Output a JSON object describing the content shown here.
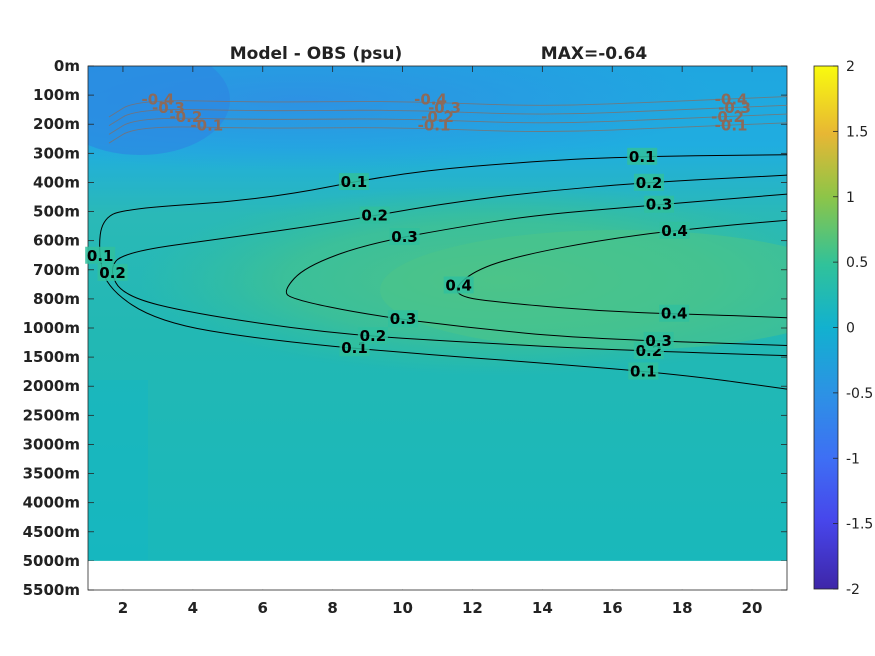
{
  "chart_data": {
    "type": "heatmap",
    "title": "Model - OBS (psu)",
    "subtitle": "MAX=-0.64",
    "xlim": [
      1,
      21
    ],
    "x_ticks": [
      "2",
      "4",
      "6",
      "8",
      "10",
      "12",
      "14",
      "16",
      "18",
      "20"
    ],
    "x_tick_values": [
      2,
      4,
      6,
      8,
      10,
      12,
      14,
      16,
      18,
      20
    ],
    "y_ticks": [
      "0m",
      "100m",
      "200m",
      "300m",
      "400m",
      "500m",
      "600m",
      "700m",
      "800m",
      "1000m",
      "1500m",
      "2000m",
      "2500m",
      "3000m",
      "3500m",
      "4000m",
      "4500m",
      "5000m",
      "5500m"
    ],
    "y_index_range": [
      0,
      18
    ],
    "data_depth_limit_index": 17,
    "colorbar": {
      "range": [
        -2,
        2
      ],
      "ticks": [
        "2",
        "1.5",
        "1",
        "0.5",
        "0",
        "-0.5",
        "-1",
        "-1.5",
        "-2"
      ],
      "tick_values": [
        2,
        1.5,
        1,
        0.5,
        0,
        -0.5,
        -1,
        -1.5,
        -2
      ],
      "colormap": "parula"
    },
    "contour_colors": {
      "positive": "#000000",
      "negative": "#8c6a5a"
    },
    "positive_contours": [
      {
        "level": 0.1,
        "labels": [
          "0.1",
          "0.1",
          "0.1",
          "0.1",
          "0.1"
        ],
        "path": [
          [
            21,
            3.05
          ],
          [
            17,
            3.1
          ],
          [
            14,
            3.25
          ],
          [
            10,
            3.65
          ],
          [
            6,
            4.6
          ],
          [
            2,
            4.9
          ],
          [
            1.4,
            5.3
          ],
          [
            1.3,
            6.3
          ],
          [
            1.5,
            7.6
          ],
          [
            3,
            8.8
          ],
          [
            6,
            9.4
          ],
          [
            10,
            9.85
          ],
          [
            14,
            10.2
          ],
          [
            18,
            10.6
          ],
          [
            21,
            11.1
          ]
        ]
      },
      {
        "level": 0.2,
        "labels": [
          "0.2",
          "0.2",
          "0.2",
          "0.2",
          "0.2"
        ],
        "path": [
          [
            21,
            3.75
          ],
          [
            17,
            4.0
          ],
          [
            14,
            4.3
          ],
          [
            11,
            4.75
          ],
          [
            8,
            5.4
          ],
          [
            5,
            5.9
          ],
          [
            2,
            6.4
          ],
          [
            1.6,
            7.0
          ],
          [
            2,
            7.9
          ],
          [
            4,
            8.5
          ],
          [
            8,
            9.2
          ],
          [
            12,
            9.5
          ],
          [
            16,
            9.75
          ],
          [
            21,
            9.95
          ]
        ]
      },
      {
        "level": 0.3,
        "labels": [
          "0.3",
          "0.3",
          "0.3",
          "0.3"
        ],
        "path": [
          [
            21,
            4.4
          ],
          [
            17,
            4.8
          ],
          [
            14,
            5.1
          ],
          [
            12,
            5.45
          ],
          [
            9,
            6.1
          ],
          [
            7.2,
            6.9
          ],
          [
            6.6,
            7.7
          ],
          [
            6.8,
            8.0
          ],
          [
            9,
            8.55
          ],
          [
            12,
            9.0
          ],
          [
            15,
            9.35
          ],
          [
            21,
            9.6
          ]
        ]
      },
      {
        "level": 0.4,
        "labels": [
          "0.4",
          "0.4",
          "0.4"
        ],
        "path": [
          [
            21,
            5.3
          ],
          [
            19,
            5.5
          ],
          [
            16,
            5.9
          ],
          [
            13,
            6.6
          ],
          [
            11.8,
            7.2
          ],
          [
            11.4,
            7.9
          ],
          [
            13,
            8.15
          ],
          [
            16,
            8.45
          ],
          [
            19,
            8.55
          ],
          [
            21,
            8.65
          ]
        ]
      }
    ],
    "negative_contours": [
      {
        "level": -0.4,
        "labels": [
          "-0.4",
          "-0.4",
          "-0.4"
        ]
      },
      {
        "level": -0.3,
        "labels": [
          "-0.3",
          "-0.3",
          "-0.3"
        ]
      },
      {
        "level": -0.2,
        "labels": [
          "-0.2",
          "-0.2",
          "-0.2"
        ]
      },
      {
        "level": -0.1,
        "labels": [
          "-0.1",
          "-0.1",
          "-0.1"
        ]
      }
    ],
    "grid": false,
    "legend": "none"
  }
}
